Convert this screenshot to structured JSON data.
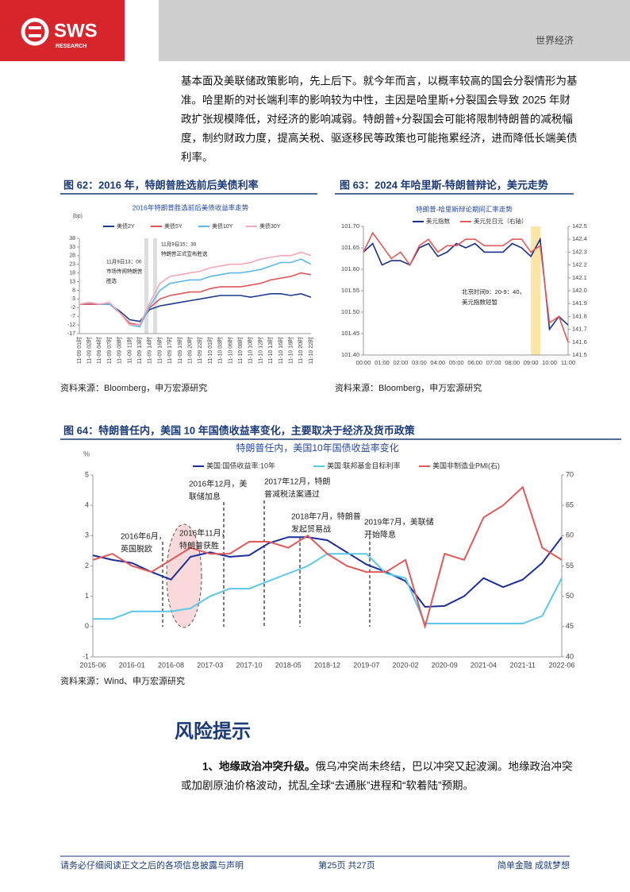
{
  "header": {
    "brand": "SWS",
    "brand_sub": "RESEARCH",
    "section": "世界经济"
  },
  "intro": {
    "lines": [
      "基本面及美联储政策影响，先上后下。就今年而言，以概率较高的国会分裂情形为基",
      "准。哈里斯的对长端利率的影响较为中性，主因是哈里斯+分裂国会导致 2025 年财",
      "政扩张规模降低，对经济的影响减弱。特朗普+分裂国会可能将限制特朗普的减税幅",
      "度，制约财政力度，提高关税、驱逐移民等政策也可能拖累经济，进而降低长端美债",
      "利率。"
    ]
  },
  "figures": [
    {
      "caption": "图 62：2016 年，特朗普胜选前后美债利率",
      "source": "资料来源：Bloomberg，申万宏源研究"
    },
    {
      "caption": "图 63：2024 年哈里斯-特朗普辩论，美元走势",
      "source": "资料来源：Bloomberg，申万宏源研究"
    },
    {
      "caption": "图 64：特朗普任内，美国 10 年国债收益率变化，主要取决于经济及货币政策",
      "source": "资料来源：Wind、申万宏源研究"
    }
  ],
  "chart_data": [
    {
      "type": "line",
      "title": "2016年特朗普胜选前后美债收益率走势",
      "unit": "(bp)",
      "categories": [
        "11-09 01时",
        "11-09 02时",
        "11-09 04时",
        "11-09 07时",
        "11-09 08时",
        "11-09 11时",
        "11-09 13时",
        "11-09 14时",
        "11-09 16时",
        "11-09 17时",
        "11-09 19时",
        "11-09 20时",
        "11-09 22时",
        "11-10 01时",
        "11-10 03时",
        "11-10 06时",
        "11-10 08时",
        "11-10 10时",
        "11-10 12时",
        "11-10 13时",
        "11-10 16时",
        "11-10 18时",
        "11-10 20时",
        "11-10 22时"
      ],
      "series": [
        {
          "name": "美债2Y",
          "color": "#1f3c8c",
          "values": [
            0,
            0,
            0,
            0,
            -4,
            -9,
            -10,
            -3,
            -1,
            0,
            1,
            2,
            3,
            4,
            5,
            5,
            5,
            4,
            5,
            6,
            6,
            5,
            6,
            4
          ]
        },
        {
          "name": "美债5Y",
          "color": "#e0575a",
          "values": [
            0,
            0,
            0,
            0,
            -5,
            -11,
            -12,
            -2,
            3,
            5,
            6,
            7,
            7,
            9,
            10,
            10,
            10,
            11,
            12,
            14,
            15,
            16,
            18,
            17
          ]
        },
        {
          "name": "美债10Y",
          "color": "#5bb8ea",
          "values": [
            0,
            1,
            0,
            0,
            -5,
            -12,
            -13,
            -1,
            8,
            12,
            13,
            14,
            14,
            16,
            17,
            18,
            18,
            19,
            20,
            22,
            24,
            24,
            26,
            23
          ]
        },
        {
          "name": "美债30Y",
          "color": "#f4a7b5",
          "values": [
            0,
            1,
            0,
            1,
            -5,
            -12,
            -12,
            1,
            12,
            16,
            17,
            18,
            19,
            21,
            22,
            23,
            23,
            24,
            26,
            27,
            28,
            28,
            30,
            28
          ]
        }
      ],
      "ylim": [
        -17,
        38
      ],
      "yticks": [
        -17,
        -12,
        -7,
        -2,
        3,
        8,
        13,
        18,
        23,
        28,
        33,
        38
      ],
      "grid": false,
      "annotations": [
        {
          "lines": [
            "11月9日13：00",
            "市场传闻特朗普",
            "胜选"
          ]
        },
        {
          "lines": [
            "11月9日15：30",
            "特朗普正式宣布胜选"
          ]
        }
      ]
    },
    {
      "type": "line",
      "title": "特朗普-哈里斯辩论期间汇率走势",
      "categories": [
        "00:00",
        null,
        "01:00",
        null,
        "02:00",
        null,
        "03:00",
        null,
        "04:00",
        null,
        "05:00",
        null,
        "06:00",
        null,
        "07:00",
        null,
        "08:00",
        null,
        "09:00",
        null,
        "10:00",
        null,
        "11:00"
      ],
      "series": [
        {
          "name": "美元指数",
          "color": "#1a2f8a",
          "values": [
            101.64,
            101.66,
            101.61,
            101.62,
            101.62,
            101.61,
            101.65,
            101.66,
            101.63,
            101.64,
            101.66,
            101.65,
            101.66,
            101.64,
            101.64,
            101.64,
            101.66,
            101.65,
            101.63,
            101.67,
            101.46,
            101.49,
            101.47
          ]
        },
        {
          "name": "美元兑日元（右轴）",
          "color": "#e55a5a",
          "axis": "y2",
          "values": [
            142.3,
            142.45,
            142.35,
            142.25,
            142.3,
            142.2,
            142.35,
            142.4,
            142.3,
            142.35,
            142.35,
            142.4,
            142.4,
            142.35,
            142.35,
            142.35,
            142.4,
            142.4,
            142.3,
            142.35,
            141.75,
            141.8,
            141.6
          ]
        }
      ],
      "ylim": [
        101.4,
        101.7
      ],
      "yticks": [
        {
          "value": 101.4,
          "label": "101.40"
        },
        101.45,
        {
          "value": 101.5,
          "label": "101.50"
        },
        101.55,
        {
          "value": 101.6,
          "label": "101.60"
        },
        101.65,
        {
          "value": 101.7,
          "label": "101.70"
        }
      ],
      "y2lim": [
        141.5,
        142.5
      ],
      "y2ticks": [
        141.5,
        141.6,
        141.7,
        141.8,
        141.9,
        {
          "value": 142,
          "label": "142.0"
        },
        142.1,
        142.2,
        142.3,
        142.4,
        142.5
      ],
      "grid": false,
      "annotations": [
        {
          "lines": [
            "北京时间9：20-9：40，",
            "美元指数短暂"
          ]
        }
      ]
    },
    {
      "type": "line",
      "title": "特朗普任内，美国10年国债收益率变化",
      "unit": "%",
      "categories": [
        "2015-06",
        null,
        "2016-01",
        null,
        "2016-08",
        null,
        "2017-03",
        null,
        "2017-10",
        null,
        "2018-05",
        null,
        "2018-12",
        null,
        "2019-07",
        null,
        "2020-02",
        null,
        "2020-09",
        null,
        "2021-04",
        null,
        "2021-11",
        null,
        "2022-06"
      ],
      "series": [
        {
          "name": "美国:国债收益率:10年",
          "color": "#1a2f9a",
          "values": [
            2.35,
            2.2,
            2.1,
            1.8,
            1.55,
            2.3,
            2.45,
            2.3,
            2.35,
            2.75,
            2.95,
            2.95,
            2.85,
            2.45,
            2.05,
            1.8,
            1.5,
            0.65,
            0.68,
            1.0,
            1.6,
            1.3,
            1.55,
            2.1,
            2.95
          ]
        },
        {
          "name": "美国:联邦基金目标利率",
          "color": "#5bc8e8",
          "values": [
            0.25,
            0.25,
            0.5,
            0.5,
            0.5,
            0.6,
            1.0,
            1.25,
            1.25,
            1.5,
            1.75,
            2.0,
            2.4,
            2.4,
            2.4,
            1.75,
            1.6,
            0.1,
            0.1,
            0.1,
            0.1,
            0.1,
            0.1,
            0.35,
            1.6
          ]
        },
        {
          "name": "美国非制造业PMI(右)",
          "color": "#e05a5a",
          "axis": "y2",
          "values": [
            56,
            57,
            55,
            54,
            56,
            58,
            57,
            57,
            59,
            59,
            58,
            60,
            57,
            55,
            54,
            54,
            56,
            45,
            57,
            56,
            63,
            65,
            68,
            58,
            56
          ]
        }
      ],
      "ylim": [
        -1,
        5
      ],
      "yticks": [
        -1,
        0,
        1,
        2,
        3,
        4,
        5
      ],
      "y2lim": [
        40,
        70
      ],
      "y2ticks": [
        40,
        45,
        50,
        55,
        60,
        65,
        70
      ],
      "grid": false,
      "annotations": [
        {
          "lines": [
            "2016年6月，",
            "英国脱欧"
          ]
        },
        {
          "lines": [
            "2016年11月，",
            "特朗普获胜"
          ]
        },
        {
          "lines": [
            "2016年12月，美",
            "联储加息"
          ]
        },
        {
          "lines": [
            "2017年12月，特朗",
            "普减税法案通过"
          ]
        },
        {
          "lines": [
            "2018年7月，特朗普",
            "发起贸易战"
          ]
        },
        {
          "lines": [
            "2019年7月，美联储",
            "开始降息"
          ]
        }
      ]
    }
  ],
  "risk": {
    "heading": "风险提示",
    "items": [
      {
        "lead": "1、地缘政治冲突升级。",
        "lines": [
          "俄乌冲突尚未终结，巴以冲突又起波澜。地缘政治冲突",
          "或加剧原油价格波动，扰乱全球“去通胀”进程和“软着陆”预期。"
        ]
      }
    ]
  },
  "footer": {
    "disclaimer": "请务必仔细阅读正文之后的各项信息披露与声明",
    "page": "第25页 共27页",
    "slogan": "简单金融 成就梦想"
  }
}
